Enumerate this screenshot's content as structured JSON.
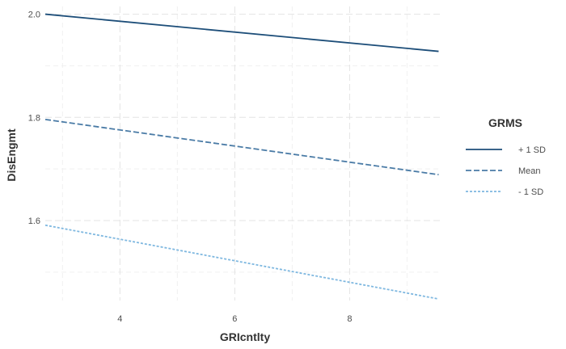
{
  "chart_data": {
    "type": "line",
    "xlabel": "GRIcntlty",
    "ylabel": "DisEngmt",
    "xlim": [
      2.7,
      9.6
    ],
    "ylim": [
      1.445,
      2.015
    ],
    "xticks": [
      4,
      6,
      8
    ],
    "yticks": [
      1.6,
      1.8,
      2.0
    ],
    "xtick_labels": [
      "4",
      "6",
      "8"
    ],
    "ytick_labels": [
      "1.6",
      "1.8",
      "2.0"
    ],
    "grid": true,
    "legend": {
      "title": "GRMS",
      "position": "right"
    },
    "series": [
      {
        "name": "+ 1 SD",
        "color": "#1d4e79",
        "dash": "solid",
        "x": [
          2.7,
          9.55
        ],
        "y": [
          2.0,
          1.928
        ]
      },
      {
        "name": "Mean",
        "color": "#4a7ba6",
        "dash": "dashed",
        "x": [
          2.7,
          9.55
        ],
        "y": [
          1.796,
          1.689
        ]
      },
      {
        "name": "- 1 SD",
        "color": "#7fb8e0",
        "dash": "dotted",
        "x": [
          2.7,
          9.55
        ],
        "y": [
          1.591,
          1.448
        ]
      }
    ]
  }
}
